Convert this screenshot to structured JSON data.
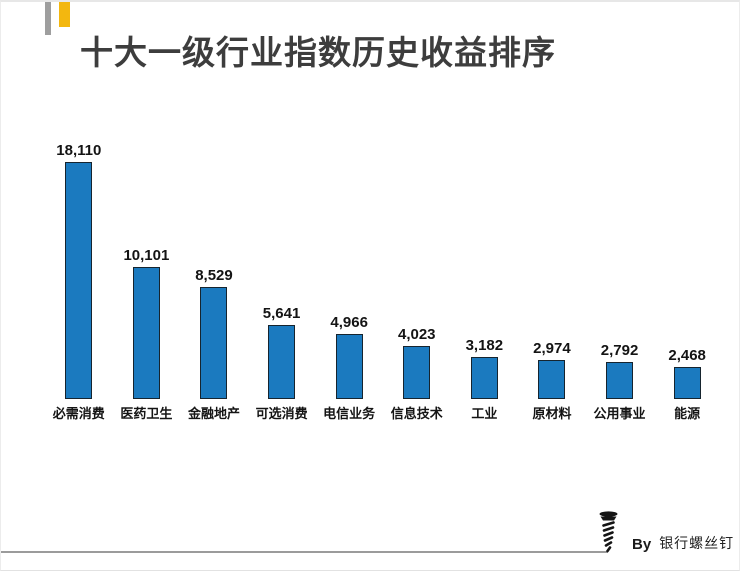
{
  "page": {
    "title": "十大一级行业指数历史收益排序",
    "accent_colors": {
      "gray_mark": "#9e9e9e",
      "yellow_mark": "#f3b70f"
    }
  },
  "chart_data": {
    "type": "bar",
    "title": "十大一级行业指数历史收益排序",
    "categories": [
      "必需消费",
      "医药卫生",
      "金融地产",
      "可选消费",
      "电信业务",
      "信息技术",
      "工业",
      "原材料",
      "公用事业",
      "能源"
    ],
    "values": [
      18110,
      10101,
      8529,
      5641,
      4966,
      4023,
      3182,
      2974,
      2792,
      2468
    ],
    "value_labels": [
      "18,110",
      "10,101",
      "8,529",
      "5,641",
      "4,966",
      "4,023",
      "3,182",
      "2,974",
      "2,792",
      "2,468"
    ],
    "xlabel": "",
    "ylabel": "",
    "ylim": [
      0,
      18110
    ],
    "grid": false,
    "legend": "none",
    "axis_lines": "none",
    "bar_color": "#1b7abf",
    "bar_edge_color": "#16242e",
    "orientation": "vertical"
  },
  "footer": {
    "by_label": "By",
    "author": "银行螺丝钉",
    "icon": "screw-icon",
    "divider_color": "#9b9b9b"
  }
}
